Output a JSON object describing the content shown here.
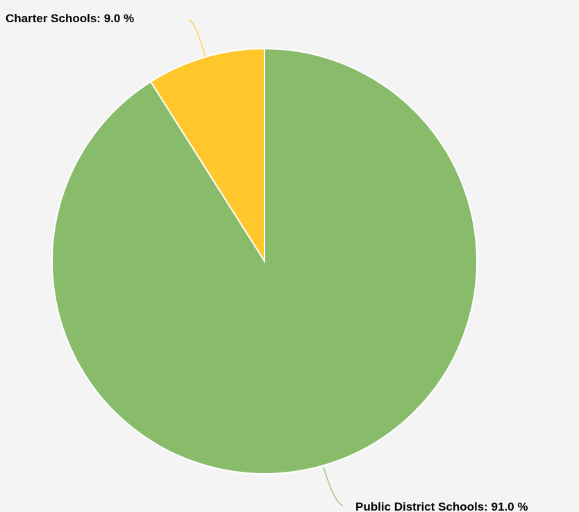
{
  "chart_data": {
    "type": "pie",
    "title": "",
    "slices": [
      {
        "label": "Charter Schools",
        "value": 9.0,
        "color": "#ffc72c"
      },
      {
        "label": "Public District Schools",
        "value": 91.0,
        "color": "#88bc6a"
      }
    ],
    "labels": {
      "charter": "Charter Schools: 9.0 %",
      "public": "Public District Schools: 91.0 %"
    },
    "start_angle": "12 o'clock",
    "direction": "counter-clockwise",
    "background": "#f4f4f4"
  }
}
